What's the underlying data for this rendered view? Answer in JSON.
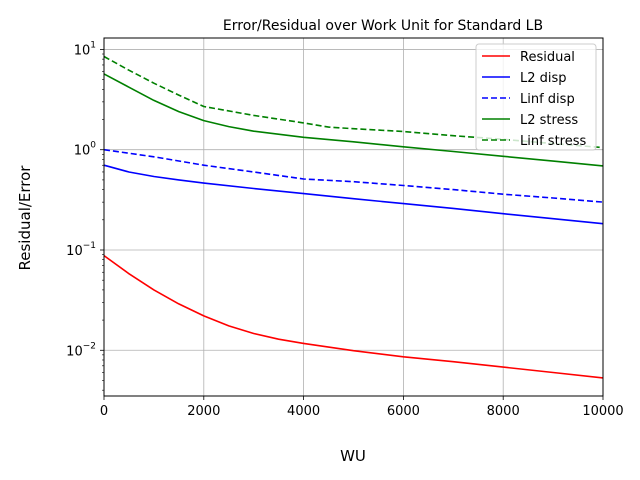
{
  "chart_data": {
    "type": "line",
    "title": "Error/Residual over Work Unit for Standard LB",
    "xlabel": "WU",
    "ylabel": "Residual/Error",
    "xlim": [
      0,
      10000
    ],
    "ylim": [
      0.0035,
      13
    ],
    "yscale": "log",
    "grid": true,
    "legend_position": "top-right",
    "x_ticks": [
      0,
      2000,
      4000,
      6000,
      8000,
      10000
    ],
    "x_tick_labels": [
      "0",
      "2000",
      "4000",
      "6000",
      "8000",
      "10000"
    ],
    "y_ticks": [
      0.01,
      0.1,
      1,
      10
    ],
    "y_tick_labels": [
      {
        "base": "10",
        "exp": "−2"
      },
      {
        "base": "10",
        "exp": "−1"
      },
      {
        "base": "10",
        "exp": "0"
      },
      {
        "base": "10",
        "exp": "1"
      }
    ],
    "series": [
      {
        "name": "Residual",
        "color": "#ff0000",
        "linestyle": "solid",
        "x": [
          0,
          500,
          1000,
          1500,
          2000,
          2500,
          3000,
          3500,
          4000,
          5000,
          6000,
          7000,
          8000,
          9000,
          10000
        ],
        "y": [
          0.088,
          0.058,
          0.04,
          0.029,
          0.022,
          0.0175,
          0.0147,
          0.0129,
          0.0117,
          0.0099,
          0.0086,
          0.0077,
          0.0068,
          0.006,
          0.0053
        ]
      },
      {
        "name": "L2 disp",
        "color": "#0000ff",
        "linestyle": "solid",
        "x": [
          0,
          500,
          1000,
          1500,
          2000,
          3000,
          4000,
          5000,
          6000,
          7000,
          8000,
          9000,
          10000
        ],
        "y": [
          0.7,
          0.6,
          0.54,
          0.5,
          0.465,
          0.41,
          0.365,
          0.325,
          0.29,
          0.26,
          0.23,
          0.205,
          0.183
        ]
      },
      {
        "name": "Linf disp",
        "color": "#0000ff",
        "linestyle": "dashed",
        "x": [
          0,
          1000,
          2000,
          3000,
          4000,
          5000,
          6000,
          7000,
          8000,
          9000,
          10000
        ],
        "y": [
          1.0,
          0.85,
          0.7,
          0.6,
          0.51,
          0.48,
          0.44,
          0.4,
          0.36,
          0.33,
          0.3
        ]
      },
      {
        "name": "L2 stress",
        "color": "#008000",
        "linestyle": "solid",
        "x": [
          0,
          500,
          1000,
          1500,
          2000,
          2500,
          3000,
          4000,
          5000,
          6000,
          7000,
          8000,
          9000,
          10000
        ],
        "y": [
          5.7,
          4.2,
          3.1,
          2.4,
          1.95,
          1.7,
          1.53,
          1.33,
          1.2,
          1.07,
          0.96,
          0.86,
          0.77,
          0.69
        ]
      },
      {
        "name": "Linf stress",
        "color": "#008000",
        "linestyle": "dashed",
        "x": [
          0,
          500,
          1000,
          1500,
          2000,
          3000,
          4000,
          4500,
          5000,
          6000,
          7000,
          8000,
          9000,
          10000
        ],
        "y": [
          8.5,
          6.2,
          4.6,
          3.5,
          2.7,
          2.2,
          1.85,
          1.68,
          1.62,
          1.52,
          1.38,
          1.27,
          1.15,
          1.05
        ]
      }
    ]
  }
}
